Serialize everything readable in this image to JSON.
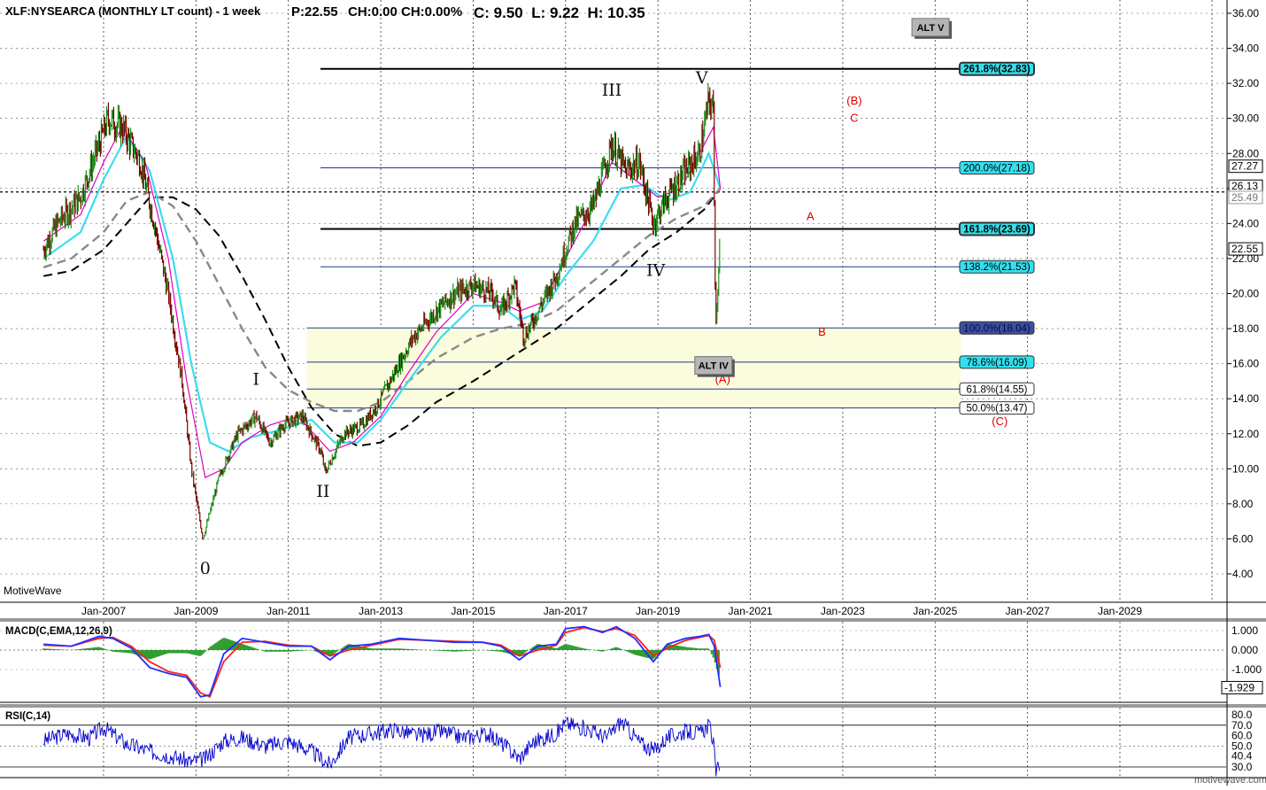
{
  "header": {
    "symbol": "XLF:NYSEARCA (MONTHLY LT count) - 1 week",
    "price": "P:22.55",
    "change": "CH:0.00",
    "change_pct": "CH:0.00%",
    "ohlc": "C: 9.50  L: 9.22  H: 10.35"
  },
  "watermark": "MotiveWave",
  "footer_url": "motivewave.com",
  "colors": {
    "bull": "#1e8f1e",
    "bear": "#7a0000",
    "ema_fast": "#e000c8",
    "ema_slow": "#3cdcf0",
    "ma_dash_gray": "#888888",
    "ma_dash_black": "#000000",
    "fib_box": "#fbfbdd",
    "fib_line": "#1a3c8c",
    "label_red": "#e00000",
    "macd_line": "#2030ff",
    "signal_line": "#ff2020",
    "histogram": "#2e9e2e",
    "rsi_line": "#0000cc"
  },
  "chart_data": [
    {
      "type": "line",
      "panel": "price",
      "title": "XLF:NYSEARCA (MONTHLY LT count) - 1 week",
      "x_axis_labels": [
        "Jan-2007",
        "Jan-2009",
        "Jan-2011",
        "Jan-2013",
        "Jan-2015",
        "Jan-2017",
        "Jan-2019",
        "Jan-2021",
        "Jan-2023",
        "Jan-2025",
        "Jan-2027",
        "Jan-2029"
      ],
      "y_ticks": [
        4,
        6,
        8,
        10,
        12,
        14,
        16,
        18,
        20,
        22,
        24,
        26,
        28,
        30,
        32,
        34,
        36
      ],
      "ylim": [
        3,
        36.5
      ],
      "xlim": [
        2005.7,
        2030.8
      ],
      "price_labels": [
        {
          "value": 27.27,
          "text": "27.27"
        },
        {
          "value": 26.13,
          "text": "26.13"
        },
        {
          "value": 25.49,
          "text": "25.49"
        },
        {
          "value": 22.55,
          "text": "22.55"
        }
      ],
      "current_price_dotted": 25.8,
      "series": [
        {
          "role": "price",
          "x": [
            2005.7,
            2006.0,
            2006.5,
            2006.9,
            2007.1,
            2007.4,
            2007.8,
            2008.1,
            2008.4,
            2008.7,
            2008.9,
            2009.15,
            2009.5,
            2009.9,
            2010.3,
            2010.6,
            2010.9,
            2011.3,
            2011.7,
            2011.8,
            2012.2,
            2012.6,
            2012.9,
            2013.3,
            2013.7,
            2014.2,
            2014.6,
            2015.0,
            2015.4,
            2015.6,
            2015.9,
            2016.1,
            2016.4,
            2016.8,
            2017.2,
            2017.6,
            2018.0,
            2018.3,
            2018.6,
            2018.9,
            2019.2,
            2019.6,
            2019.9,
            2020.1,
            2020.2,
            2020.25,
            2020.35
          ],
          "values": [
            22.5,
            24.0,
            25.5,
            28.5,
            30.0,
            29.5,
            27.5,
            24.0,
            20.0,
            15.0,
            10.0,
            6.0,
            9.5,
            12.0,
            13.0,
            11.5,
            12.5,
            13.0,
            11.0,
            9.8,
            12.0,
            12.5,
            13.5,
            15.5,
            17.5,
            19.0,
            20.0,
            20.5,
            20.0,
            19.0,
            20.5,
            17.5,
            19.0,
            21.0,
            24.0,
            25.0,
            28.5,
            27.0,
            27.5,
            24.0,
            25.5,
            27.0,
            28.0,
            31.0,
            30.5,
            18.0,
            23.5
          ]
        },
        {
          "role": "ema_fast",
          "x": [
            2005.7,
            2006.5,
            2007.0,
            2007.4,
            2007.9,
            2008.4,
            2008.8,
            2009.2,
            2009.6,
            2010.0,
            2010.6,
            2011.2,
            2011.9,
            2012.4,
            2013.0,
            2013.6,
            2014.2,
            2015.0,
            2015.6,
            2016.0,
            2016.5,
            2017.0,
            2017.5,
            2018.0,
            2018.5,
            2019.0,
            2019.5,
            2020.0,
            2020.2,
            2020.35
          ],
          "values": [
            23.0,
            24.5,
            27.5,
            29.5,
            27.5,
            22.0,
            15.0,
            9.5,
            10.0,
            11.5,
            12.5,
            13.0,
            11.0,
            11.5,
            13.0,
            15.5,
            17.8,
            20.0,
            19.5,
            19.0,
            19.5,
            22.0,
            24.5,
            27.5,
            26.5,
            25.5,
            26.0,
            28.5,
            29.5,
            26.0
          ]
        },
        {
          "role": "ema_slow",
          "x": [
            2005.7,
            2006.5,
            2007.0,
            2007.5,
            2008.0,
            2008.5,
            2008.9,
            2009.3,
            2009.7,
            2010.2,
            2010.8,
            2011.5,
            2012.0,
            2012.5,
            2013.0,
            2013.6,
            2014.3,
            2015.0,
            2015.6,
            2016.0,
            2016.5,
            2017.0,
            2017.6,
            2018.2,
            2018.7,
            2019.2,
            2019.7,
            2020.1,
            2020.35
          ],
          "values": [
            22.0,
            23.5,
            26.5,
            29.0,
            27.0,
            22.0,
            16.0,
            11.5,
            11.0,
            11.8,
            12.2,
            12.8,
            11.5,
            11.5,
            12.8,
            15.0,
            17.5,
            19.3,
            19.3,
            18.5,
            19.0,
            21.0,
            23.0,
            26.0,
            26.2,
            25.3,
            25.8,
            28.0,
            26.0
          ]
        },
        {
          "role": "ma_gray",
          "x": [
            2005.7,
            2006.3,
            2007.0,
            2007.5,
            2008.0,
            2008.5,
            2009.0,
            2009.5,
            2010.0,
            2010.5,
            2011.0,
            2011.5,
            2012.0,
            2012.5,
            2013.0,
            2013.6,
            2014.2,
            2015.0,
            2015.6,
            2016.2,
            2016.8,
            2017.5,
            2018.2,
            2018.8,
            2019.4,
            2020.0,
            2020.35
          ],
          "values": [
            21.5,
            22.0,
            23.5,
            25.3,
            25.8,
            25.0,
            23.0,
            20.5,
            18.0,
            15.8,
            14.5,
            13.8,
            13.3,
            13.3,
            13.8,
            15.0,
            16.3,
            17.5,
            18.0,
            18.3,
            19.0,
            20.5,
            22.0,
            23.3,
            24.3,
            25.0,
            26.0
          ]
        },
        {
          "role": "ma_black",
          "x": [
            2005.7,
            2006.3,
            2007.0,
            2007.5,
            2008.0,
            2008.5,
            2009.0,
            2009.5,
            2010.0,
            2010.5,
            2011.0,
            2011.5,
            2012.0,
            2012.5,
            2013.0,
            2013.6,
            2014.2,
            2015.0,
            2015.6,
            2016.2,
            2016.8,
            2017.5,
            2018.2,
            2018.8,
            2019.4,
            2020.0,
            2020.35
          ],
          "values": [
            21.0,
            21.3,
            22.5,
            24.0,
            25.5,
            25.5,
            24.8,
            23.3,
            21.0,
            18.5,
            15.8,
            13.5,
            12.0,
            11.3,
            11.5,
            12.5,
            13.8,
            15.0,
            16.0,
            17.0,
            18.0,
            19.5,
            21.0,
            22.5,
            23.5,
            24.8,
            26.0
          ]
        }
      ],
      "wave_labels": [
        {
          "text": "0",
          "x": 2009.2,
          "y": 4.0
        },
        {
          "text": "I",
          "x": 2010.3,
          "y": 14.8
        },
        {
          "text": "II",
          "x": 2011.75,
          "y": 8.4
        },
        {
          "text": "III",
          "x": 2018.0,
          "y": 31.3
        },
        {
          "text": "IV",
          "x": 2018.95,
          "y": 21.0
        },
        {
          "text": "V",
          "x": 2019.95,
          "y": 32.0
        }
      ],
      "red_labels": [
        {
          "text": "(B)",
          "x": 2023.25,
          "y": 30.8
        },
        {
          "text": "C",
          "x": 2023.25,
          "y": 29.8
        },
        {
          "text": "A",
          "x": 2022.3,
          "y": 24.2
        },
        {
          "text": "B",
          "x": 2022.55,
          "y": 17.6
        },
        {
          "text": "(A)",
          "x": 2020.4,
          "y": 14.9
        },
        {
          "text": "(C)",
          "x": 2026.4,
          "y": 12.5
        }
      ],
      "boxes": [
        {
          "text": "ALT V",
          "x": 2024.9,
          "y": 35.2
        },
        {
          "text": "ALT IV",
          "x": 2020.2,
          "y": 15.9
        }
      ],
      "fib_levels": [
        {
          "label": "261.8%(32.83)",
          "value": 32.83,
          "style": "heavy",
          "tag_color": "#33e0ee"
        },
        {
          "label": "200.0%(27.18)",
          "value": 27.18,
          "style": "thin",
          "tag_color": "#33e0ee"
        },
        {
          "label": "161.8%(23.69)",
          "value": 23.69,
          "style": "heavy",
          "tag_color": "#33e0ee"
        },
        {
          "label": "138.2%(21.53)",
          "value": 21.53,
          "style": "thin",
          "tag_color": "#33e0ee"
        },
        {
          "label": "100.0%(18.04)",
          "value": 18.04,
          "style": "thin",
          "tag_color": "#3b4fa0"
        },
        {
          "label": "78.6%(16.09)",
          "value": 16.09,
          "style": "thin",
          "tag_color": "#33e0ee"
        },
        {
          "label": "61.8%(14.55)",
          "value": 14.55,
          "style": "thin",
          "tag_color": "#ffffff"
        },
        {
          "label": "50.0%(13.47)",
          "value": 13.47,
          "style": "thin",
          "tag_color": "#ffffff"
        }
      ],
      "fib_zone": {
        "from_value": 13.47,
        "to_value": 18.04,
        "x_start": 2011.4
      }
    },
    {
      "type": "line",
      "panel": "macd",
      "title": "MACD(C,EMA,12,26,9)",
      "y_ticks": [
        1.0,
        0.0,
        -1.0
      ],
      "y_tick_labels": [
        "1.000",
        "0.000",
        "-1.000"
      ],
      "current_label": "-1.929",
      "ylim": [
        -2.6,
        1.5
      ],
      "series": [
        {
          "role": "macd",
          "x": [
            2005.7,
            2006.3,
            2006.9,
            2007.2,
            2007.6,
            2008.0,
            2008.4,
            2008.8,
            2009.1,
            2009.3,
            2009.6,
            2010.0,
            2010.5,
            2011.0,
            2011.5,
            2011.9,
            2012.3,
            2012.8,
            2013.4,
            2014.0,
            2014.6,
            2015.2,
            2015.6,
            2016.0,
            2016.4,
            2016.8,
            2017.0,
            2017.4,
            2017.8,
            2018.1,
            2018.5,
            2018.9,
            2019.2,
            2019.6,
            2019.9,
            2020.1,
            2020.22,
            2020.35
          ],
          "values": [
            0.3,
            0.2,
            0.7,
            0.6,
            0.1,
            -0.9,
            -1.2,
            -1.4,
            -2.4,
            -2.3,
            -0.2,
            0.6,
            0.4,
            0.2,
            0.2,
            -0.5,
            0.2,
            0.3,
            0.6,
            0.5,
            0.4,
            0.4,
            0.2,
            -0.5,
            0.2,
            0.3,
            1.1,
            1.2,
            0.9,
            1.2,
            0.6,
            -0.6,
            0.3,
            0.6,
            0.7,
            0.8,
            0.2,
            -1.9
          ]
        },
        {
          "role": "signal",
          "x": [
            2005.7,
            2006.3,
            2006.9,
            2007.2,
            2007.6,
            2008.0,
            2008.4,
            2008.8,
            2009.1,
            2009.3,
            2009.6,
            2010.0,
            2010.5,
            2011.0,
            2011.5,
            2011.9,
            2012.3,
            2012.8,
            2013.4,
            2014.0,
            2014.6,
            2015.2,
            2015.6,
            2016.0,
            2016.4,
            2016.8,
            2017.0,
            2017.4,
            2017.8,
            2018.1,
            2018.5,
            2018.9,
            2019.2,
            2019.6,
            2019.9,
            2020.1,
            2020.22,
            2020.35
          ],
          "values": [
            0.25,
            0.2,
            0.6,
            0.65,
            0.2,
            -0.6,
            -1.1,
            -1.3,
            -2.2,
            -2.4,
            -0.6,
            0.4,
            0.45,
            0.25,
            0.2,
            -0.3,
            0.0,
            0.25,
            0.55,
            0.5,
            0.45,
            0.4,
            0.25,
            -0.3,
            0.0,
            0.25,
            0.9,
            1.15,
            0.95,
            1.1,
            0.75,
            -0.3,
            0.1,
            0.5,
            0.65,
            0.75,
            0.5,
            -0.9
          ]
        }
      ]
    },
    {
      "type": "line",
      "panel": "rsi",
      "title": "RSI(C,14)",
      "y_ticks": [
        80,
        70,
        60,
        50,
        40.4,
        30
      ],
      "y_tick_labels": [
        "80.0",
        "70.0",
        "60.0",
        "50.0",
        "40.4",
        "30.0"
      ],
      "ylim": [
        20,
        85
      ],
      "series": [
        {
          "role": "rsi",
          "x": [
            2005.7,
            2006.2,
            2006.7,
            2007.0,
            2007.5,
            2008.0,
            2008.5,
            2008.9,
            2009.2,
            2009.6,
            2010.0,
            2010.5,
            2011.0,
            2011.5,
            2011.9,
            2012.3,
            2012.8,
            2013.3,
            2013.8,
            2014.3,
            2014.8,
            2015.3,
            2015.7,
            2016.0,
            2016.3,
            2016.8,
            2017.0,
            2017.5,
            2017.9,
            2018.2,
            2018.6,
            2018.9,
            2019.2,
            2019.6,
            2019.9,
            2020.1,
            2020.2,
            2020.25,
            2020.35
          ],
          "values": [
            55,
            62,
            58,
            68,
            52,
            45,
            40,
            35,
            38,
            55,
            58,
            50,
            55,
            45,
            32,
            58,
            62,
            66,
            60,
            64,
            58,
            62,
            50,
            38,
            54,
            62,
            72,
            66,
            58,
            74,
            54,
            45,
            58,
            64,
            62,
            70,
            55,
            22,
            35
          ]
        }
      ]
    }
  ]
}
